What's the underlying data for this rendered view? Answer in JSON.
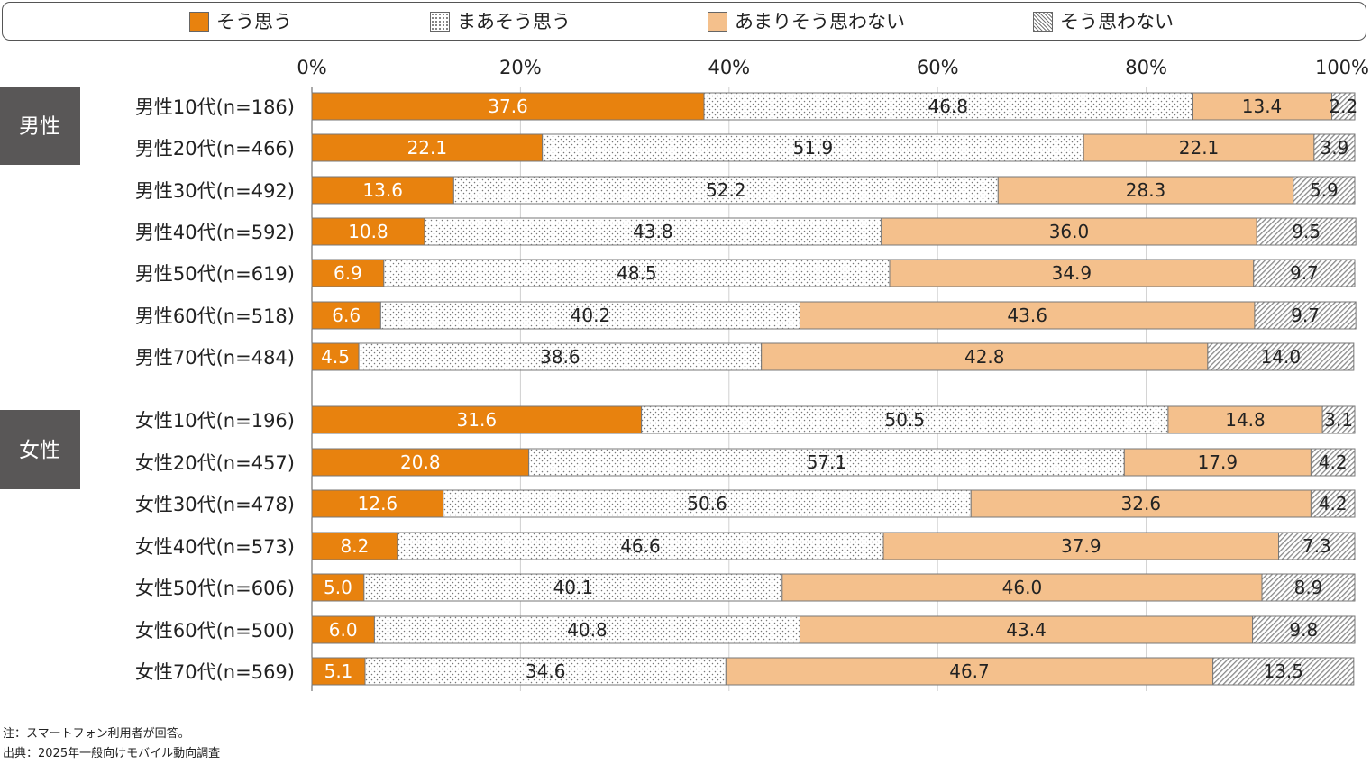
{
  "chart_data": {
    "type": "bar",
    "orientation": "horizontal",
    "stacked": true,
    "xlim": [
      0,
      100
    ],
    "x_ticks": [
      "0%",
      "20%",
      "40%",
      "60%",
      "80%",
      "100%"
    ],
    "legend_position": "top",
    "grid": true,
    "series": [
      {
        "name": "そう思う",
        "color": "#E8820E",
        "pattern": "solid"
      },
      {
        "name": "まあそう思う",
        "color": "#FFFFFF",
        "pattern": "dots"
      },
      {
        "name": "あまりそう思わない",
        "color": "#F4C08C",
        "pattern": "solid"
      },
      {
        "name": "そう思わない",
        "color": "#FFFFFF",
        "pattern": "diagonal-hatch"
      }
    ],
    "groups": [
      {
        "label": "男性",
        "rows": [
          {
            "label": "男性10代(n=186)",
            "values": [
              37.6,
              46.8,
              13.4,
              2.2
            ]
          },
          {
            "label": "男性20代(n=466)",
            "values": [
              22.1,
              51.9,
              22.1,
              3.9
            ]
          },
          {
            "label": "男性30代(n=492)",
            "values": [
              13.6,
              52.2,
              28.3,
              5.9
            ]
          },
          {
            "label": "男性40代(n=592)",
            "values": [
              10.8,
              43.8,
              36.0,
              9.5
            ]
          },
          {
            "label": "男性50代(n=619)",
            "values": [
              6.9,
              48.5,
              34.9,
              9.7
            ]
          },
          {
            "label": "男性60代(n=518)",
            "values": [
              6.6,
              40.2,
              43.6,
              9.7
            ]
          },
          {
            "label": "男性70代(n=484)",
            "values": [
              4.5,
              38.6,
              42.8,
              14.0
            ]
          }
        ]
      },
      {
        "label": "女性",
        "rows": [
          {
            "label": "女性10代(n=196)",
            "values": [
              31.6,
              50.5,
              14.8,
              3.1
            ]
          },
          {
            "label": "女性20代(n=457)",
            "values": [
              20.8,
              57.1,
              17.9,
              4.2
            ]
          },
          {
            "label": "女性30代(n=478)",
            "values": [
              12.6,
              50.6,
              32.6,
              4.2
            ]
          },
          {
            "label": "女性40代(n=573)",
            "values": [
              8.2,
              46.6,
              37.9,
              7.3
            ]
          },
          {
            "label": "女性50代(n=606)",
            "values": [
              5.0,
              40.1,
              46.0,
              8.9
            ]
          },
          {
            "label": "女性60代(n=500)",
            "values": [
              6.0,
              40.8,
              43.4,
              9.8
            ]
          },
          {
            "label": "女性70代(n=569)",
            "values": [
              5.1,
              34.6,
              46.7,
              13.5
            ]
          }
        ]
      }
    ]
  },
  "notes": {
    "note": "注：スマートフォン利用者が回答。",
    "source": "出典：2025年一般向けモバイル動向調査"
  },
  "colors": {
    "group_header_bg": "#595757",
    "bar_border": "#777777",
    "grid": "#D0D0D0"
  }
}
